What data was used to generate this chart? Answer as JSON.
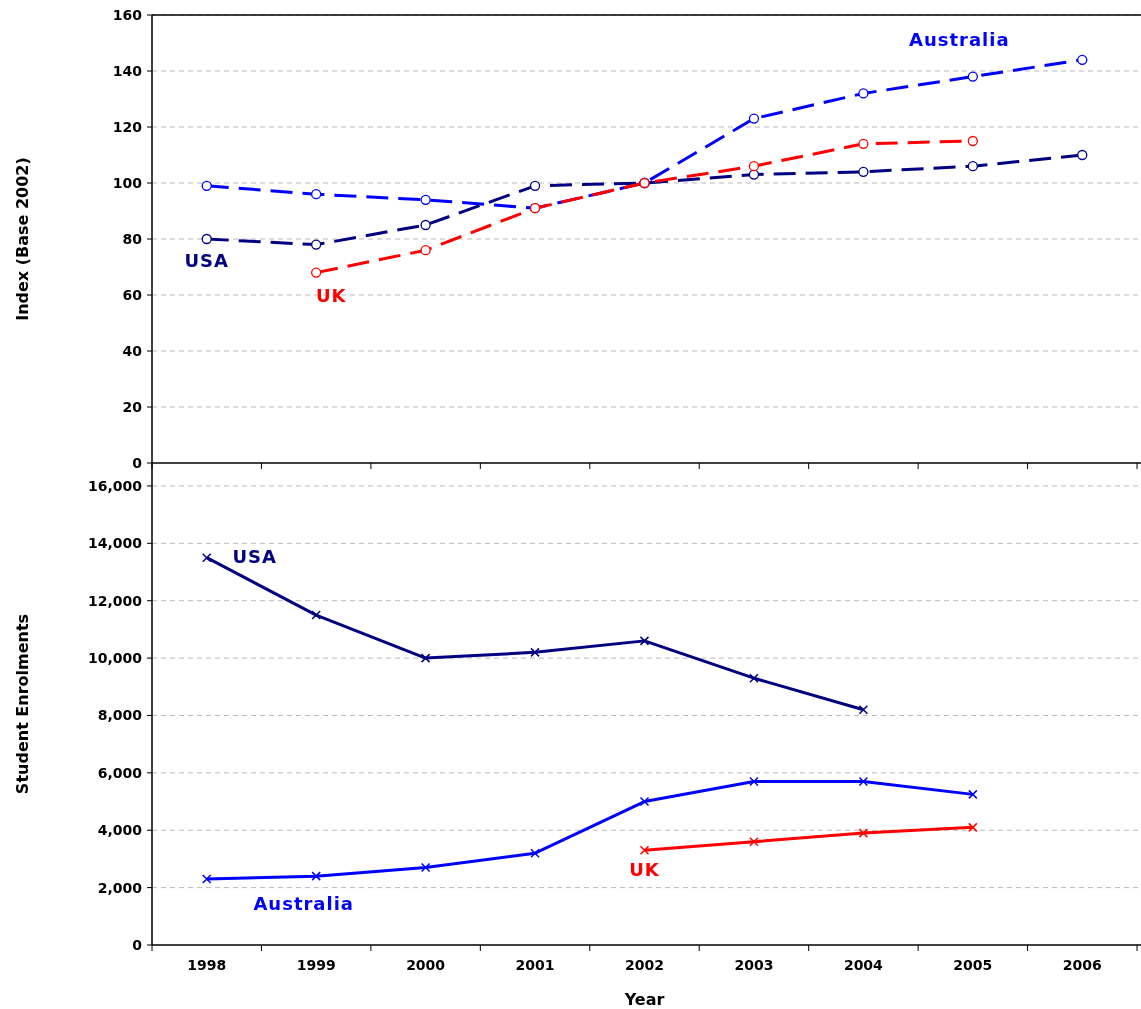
{
  "chart_data": [
    {
      "type": "line",
      "ylabel": "Index (Base 2002)",
      "categories": [
        null,
        null,
        null,
        null,
        null,
        null,
        null,
        null,
        null
      ],
      "ylim": [
        0,
        160
      ],
      "yticks": [
        0,
        20,
        40,
        60,
        80,
        100,
        120,
        140,
        160
      ],
      "grid": "y",
      "legend": false,
      "tick_labels": "y",
      "marker": "circle",
      "line_style": "dashed",
      "series": [
        {
          "name": "Australia",
          "color": "#0000ff",
          "values": [
            99,
            96,
            94,
            91,
            100,
            123,
            132,
            138,
            144
          ]
        },
        {
          "name": "USA",
          "color": "#000080",
          "values": [
            80,
            78,
            85,
            99,
            100,
            103,
            104,
            106,
            110
          ]
        },
        {
          "name": "UK",
          "color": "#ff0000",
          "values": [
            null,
            68,
            76,
            91,
            100,
            106,
            114,
            115,
            null
          ]
        }
      ]
    },
    {
      "type": "line",
      "xlabel": "Year",
      "ylabel": "Student Enrolments",
      "categories": [
        "1998",
        "1999",
        "2000",
        "2001",
        "2002",
        "2003",
        "2004",
        "2005",
        "2006"
      ],
      "ylim": [
        0,
        16800
      ],
      "yticks": [
        {
          "value": 0,
          "label": "0"
        },
        {
          "value": 2000,
          "label": "2,000"
        },
        {
          "value": 4000,
          "label": "4,000"
        },
        {
          "value": 6000,
          "label": "6,000"
        },
        {
          "value": 8000,
          "label": "8,000"
        },
        {
          "value": 10000,
          "label": "10,000"
        },
        {
          "value": 12000,
          "label": "12,000"
        },
        {
          "value": 14000,
          "label": "14,000"
        },
        {
          "value": 16000,
          "label": "16,000"
        }
      ],
      "grid": "y",
      "legend": false,
      "marker": "cross",
      "line_style": "solid",
      "series": [
        {
          "name": "Australia",
          "color": "#0000ff",
          "values": [
            2300,
            2400,
            2700,
            3200,
            5000,
            5700,
            5700,
            5250,
            null
          ]
        },
        {
          "name": "USA",
          "color": "#000080",
          "values": [
            13500,
            11500,
            10000,
            10200,
            10600,
            9300,
            8200,
            null,
            null
          ]
        },
        {
          "name": "UK",
          "color": "#ff0000",
          "values": [
            null,
            null,
            null,
            null,
            3300,
            3600,
            3900,
            4100,
            null
          ]
        }
      ]
    }
  ]
}
